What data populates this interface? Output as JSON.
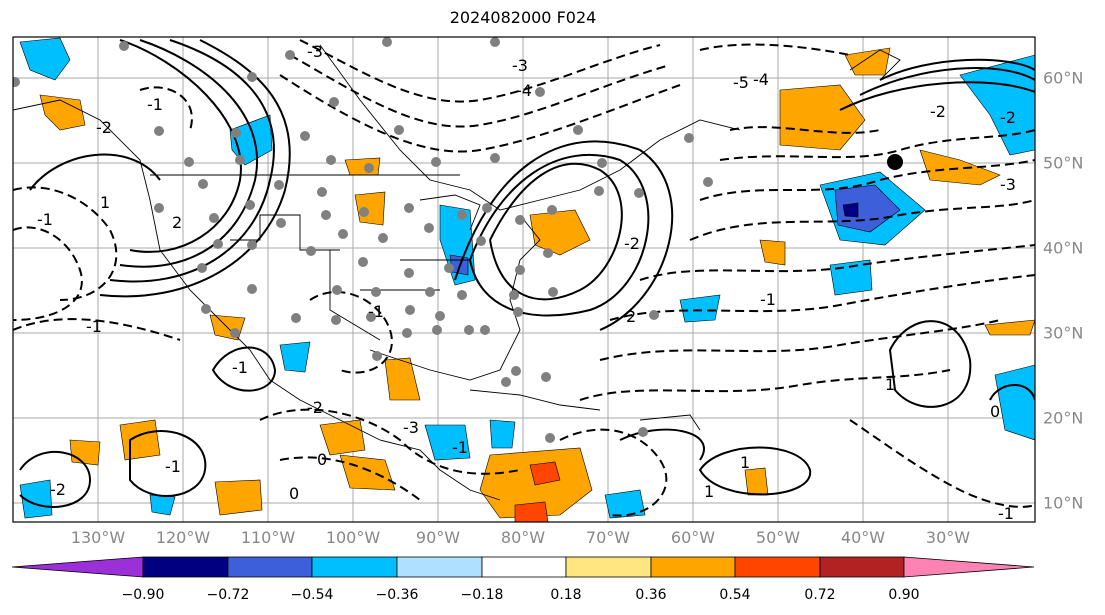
{
  "title": "2024082000 F024",
  "longitude_labels": [
    "130°W",
    "120°W",
    "110°W",
    "100°W",
    "90°W",
    "80°W",
    "70°W",
    "60°W",
    "50°W",
    "40°W",
    "30°W"
  ],
  "latitude_labels": [
    "60°N",
    "50°N",
    "40°N",
    "30°N",
    "20°N",
    "10°N"
  ],
  "colorbar": {
    "tick_labels": [
      "−0.90",
      "−0.72",
      "−0.54",
      "−0.36",
      "−0.18",
      "0.18",
      "0.36",
      "0.54",
      "0.72",
      "0.90"
    ],
    "colors": [
      "#9b30d9",
      "#000080",
      "#3d5fd9",
      "#00bfff",
      "#b0e0ff",
      "#ffffff",
      "#ffe680",
      "#ffa500",
      "#ff4500",
      "#b22222",
      "#ff82b4"
    ]
  },
  "contour_labels": [
    "-3",
    "-3",
    "-1",
    "-2",
    "-4",
    "1",
    "2",
    "-5",
    "-4",
    "-2",
    "-3",
    "-1",
    "-1",
    "-2",
    "2",
    "-1",
    "-2",
    "1",
    "0",
    "-1",
    "-1",
    "-2",
    "-3",
    "-1",
    "0",
    "-2",
    "-1",
    "0",
    "1",
    "1",
    "-1"
  ]
}
